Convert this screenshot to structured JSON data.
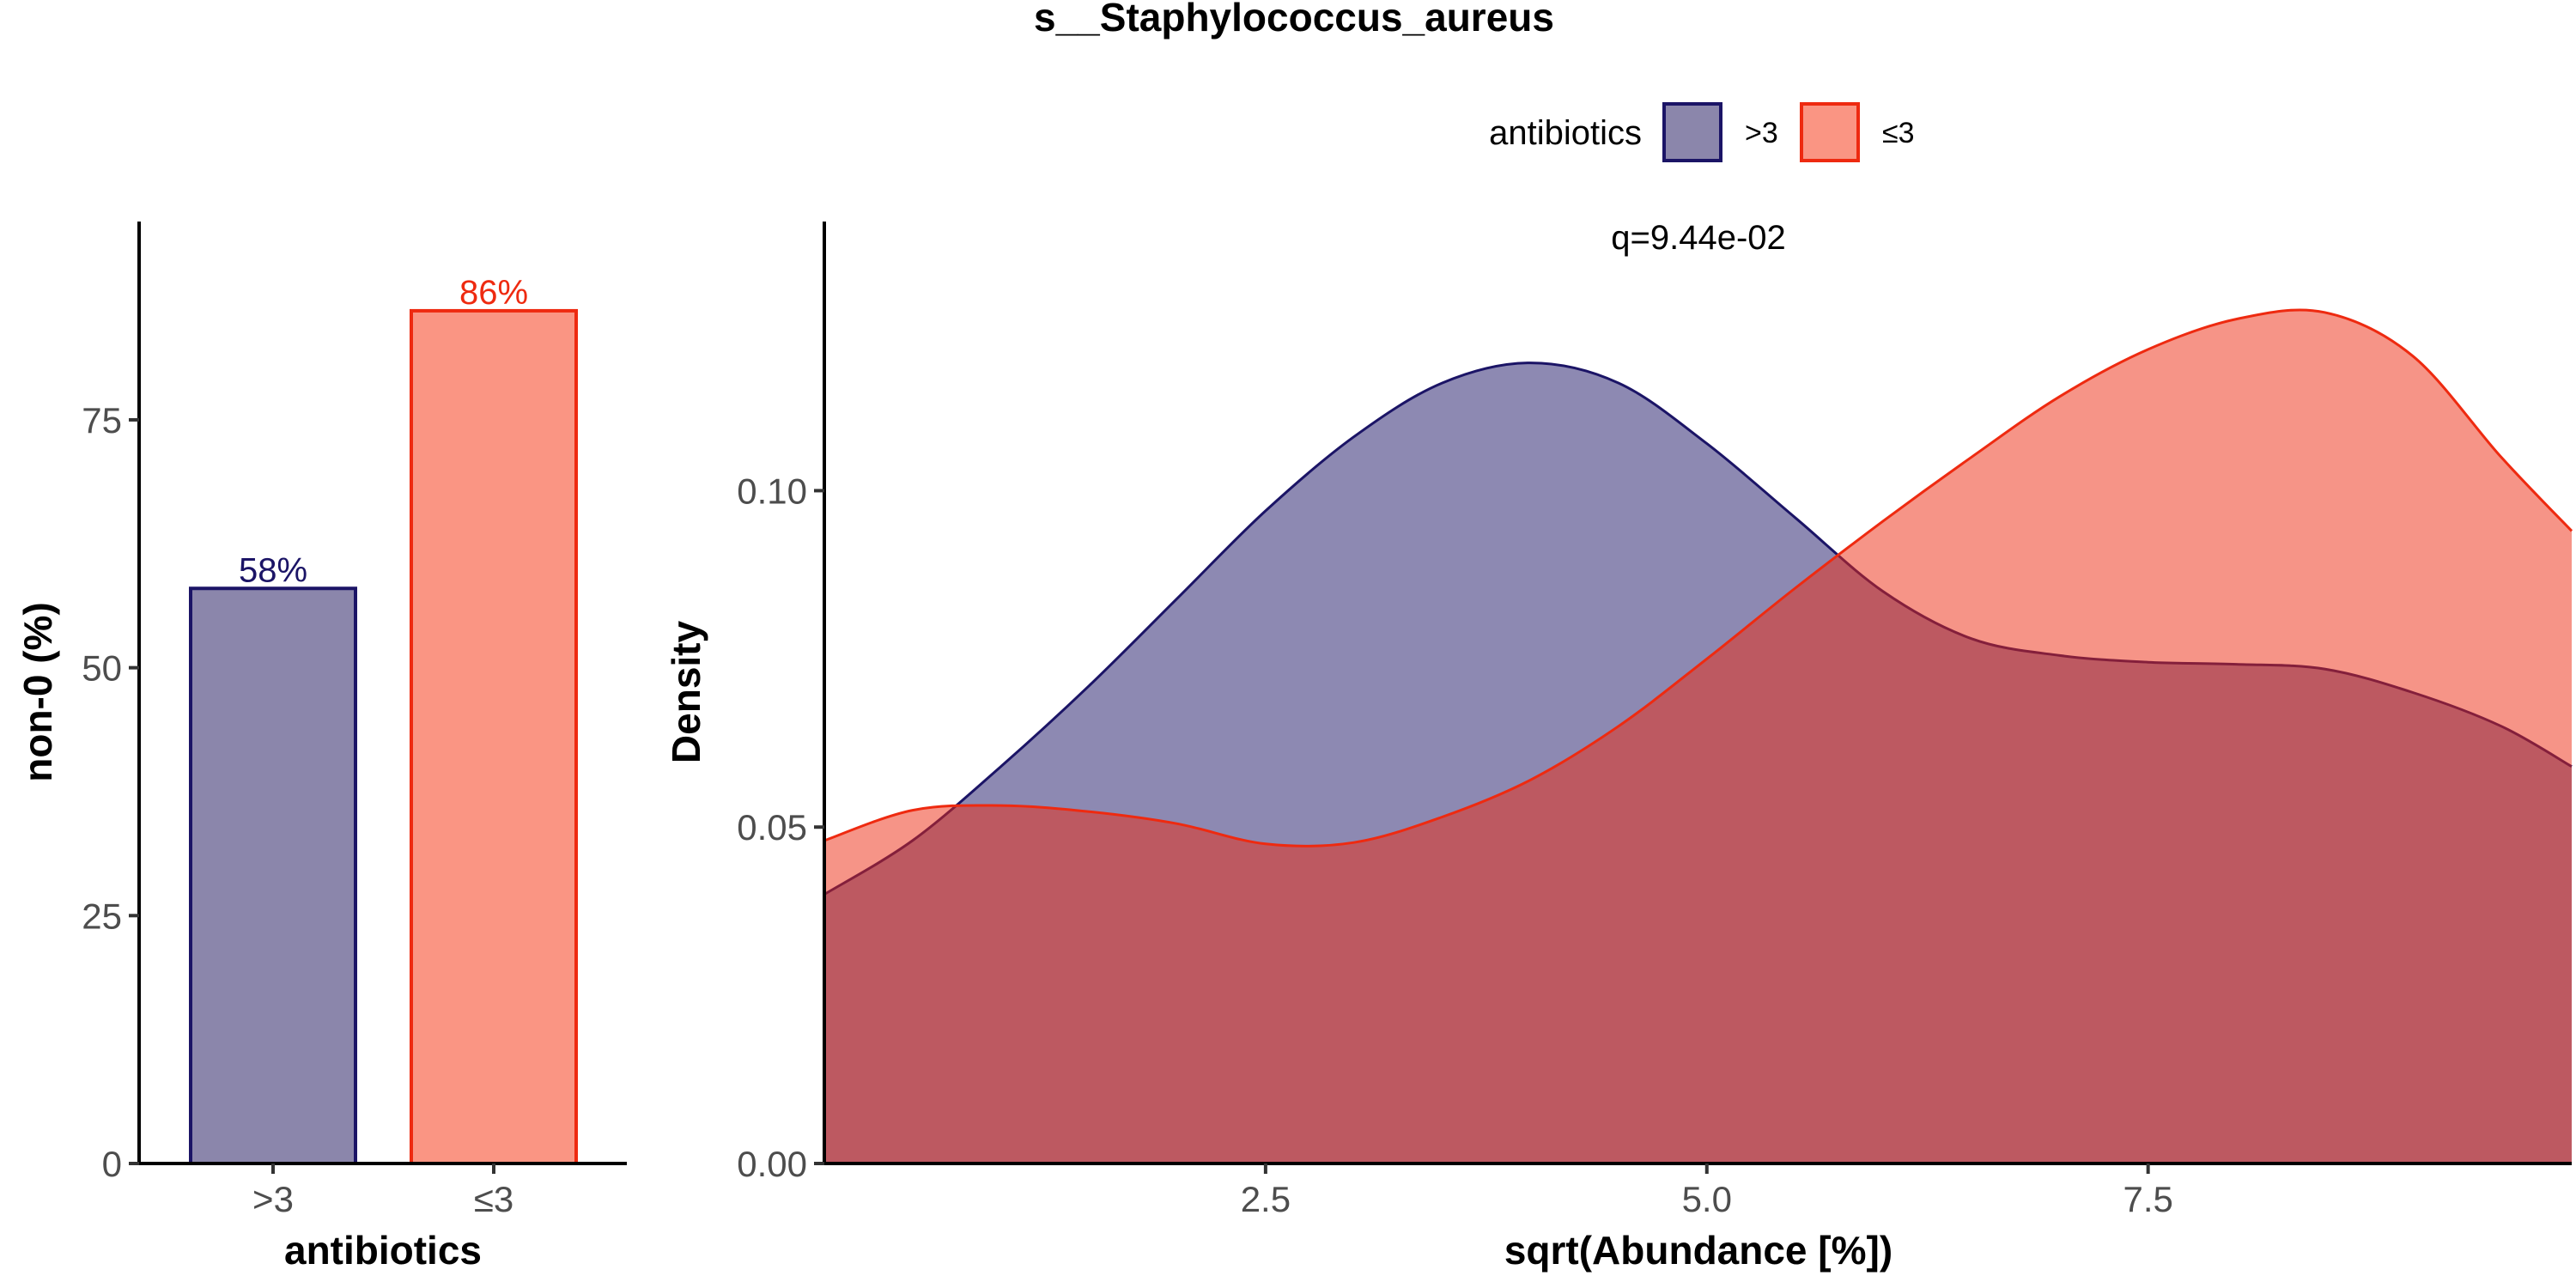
{
  "title": "s__Staphylococcus_aureus",
  "legend": {
    "title": "antibiotics",
    "items": [
      {
        "label": ">3",
        "fill": "#8b86ab",
        "stroke": "#1b1466"
      },
      {
        "label": "≤3",
        "fill": "#fa9583",
        "stroke": "#ee2a10"
      }
    ]
  },
  "chart_data": [
    {
      "type": "bar",
      "categories": [
        ">3",
        "≤3"
      ],
      "values": [
        58,
        86
      ],
      "data_labels": [
        "58%",
        "86%"
      ],
      "xlabel": "antibiotics",
      "ylabel": "non-0 (%)",
      "ylim": [
        0,
        95
      ],
      "yticks": [
        0,
        25,
        50,
        75
      ],
      "ytick_labels": [
        "0",
        "25",
        "50",
        "75"
      ]
    },
    {
      "type": "area",
      "annotation": "q=9.44e-02",
      "xlabel": "sqrt(Abundance [%])",
      "ylabel": "Density",
      "xlim": [
        0,
        9.9
      ],
      "ylim": [
        0,
        0.14
      ],
      "xticks": [
        2.5,
        5.0,
        7.5
      ],
      "xtick_labels": [
        "2.5",
        "5.0",
        "7.5"
      ],
      "yticks": [
        0.0,
        0.05,
        0.1
      ],
      "ytick_labels": [
        "0.00",
        "0.05",
        "0.10"
      ],
      "series": [
        {
          "name": ">3",
          "x": [
            0.0,
            0.5,
            1.0,
            1.5,
            2.0,
            2.5,
            3.0,
            3.5,
            4.0,
            4.5,
            5.0,
            5.5,
            6.0,
            6.5,
            7.0,
            7.5,
            8.0,
            8.5,
            9.0,
            9.5,
            9.9
          ],
          "y": [
            0.04,
            0.048,
            0.059,
            0.071,
            0.084,
            0.097,
            0.108,
            0.116,
            0.119,
            0.116,
            0.107,
            0.096,
            0.085,
            0.078,
            0.0755,
            0.0745,
            0.0742,
            0.0735,
            0.07,
            0.065,
            0.059
          ]
        },
        {
          "name": "≤3",
          "x": [
            0.0,
            0.5,
            1.0,
            1.5,
            2.0,
            2.5,
            3.0,
            3.5,
            4.0,
            4.5,
            5.0,
            5.5,
            6.0,
            6.5,
            7.0,
            7.5,
            8.0,
            8.5,
            9.0,
            9.5,
            9.9
          ],
          "y": [
            0.048,
            0.0525,
            0.0532,
            0.0523,
            0.0505,
            0.0475,
            0.0477,
            0.0515,
            0.057,
            0.065,
            0.075,
            0.0855,
            0.0955,
            0.105,
            0.114,
            0.121,
            0.1255,
            0.1265,
            0.12,
            0.105,
            0.094
          ]
        }
      ]
    }
  ]
}
